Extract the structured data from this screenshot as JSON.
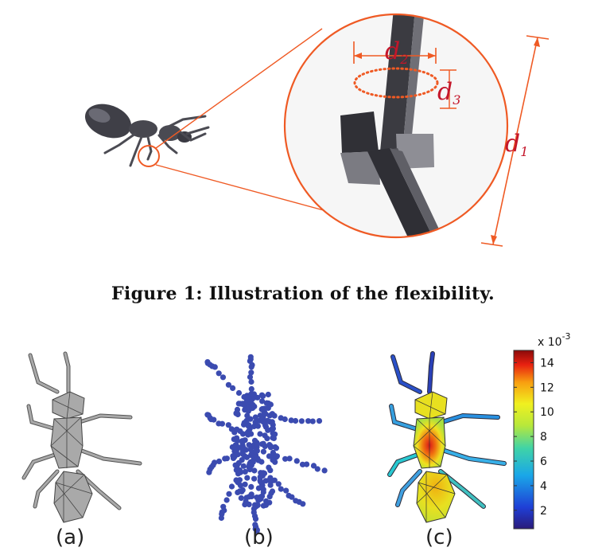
{
  "figure1": {
    "caption": "Figure 1: Illustration of the flexibility.",
    "labels": {
      "d1": "d",
      "d1_sub": "1",
      "d2": "d",
      "d2_sub": "2",
      "d3": "d",
      "d3_sub": "3"
    },
    "accent_color": "#ef5a24",
    "label_color": "#c4162a"
  },
  "figure2": {
    "subfigure_labels": [
      "(a)",
      "(b)",
      "(c)"
    ],
    "colorbar": {
      "multiplier_base": "x 10",
      "multiplier_exponent": "-3",
      "ticks": [
        "14",
        "12",
        "10",
        "8",
        "6",
        "4",
        "2"
      ],
      "tick_values": [
        14,
        12,
        10,
        8,
        6,
        4,
        2
      ],
      "range": [
        0.5,
        15
      ]
    },
    "point_color": "#3b4bb0",
    "mesh_color": "#a9a9a9"
  }
}
